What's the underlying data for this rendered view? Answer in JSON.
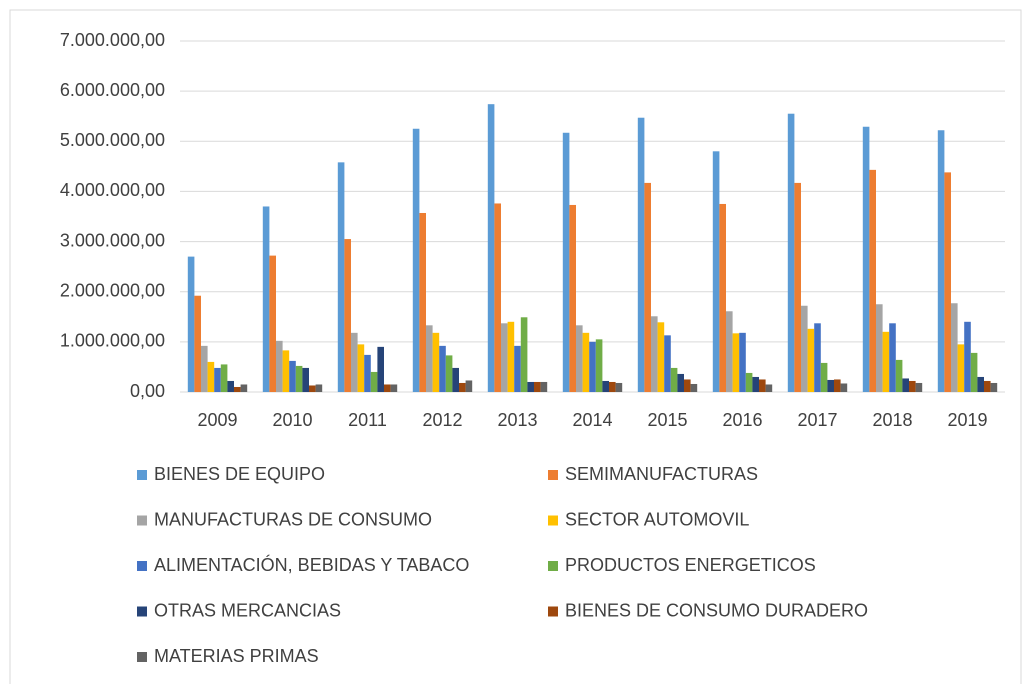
{
  "chart_data": {
    "type": "bar",
    "categories": [
      "2009",
      "2010",
      "2011",
      "2012",
      "2013",
      "2014",
      "2015",
      "2016",
      "2017",
      "2018",
      "2019"
    ],
    "series": [
      {
        "name": "BIENES DE EQUIPO",
        "color": "#5b9bd5",
        "values": [
          2700000,
          3700000,
          4580000,
          5250000,
          5740000,
          5170000,
          5470000,
          4800000,
          5550000,
          5290000,
          5220000
        ]
      },
      {
        "name": "SEMIMANUFACTURAS",
        "color": "#ed7d31",
        "values": [
          1920000,
          2720000,
          3050000,
          3570000,
          3760000,
          3730000,
          4170000,
          3750000,
          4170000,
          4430000,
          4380000
        ]
      },
      {
        "name": "MANUFACTURAS DE CONSUMO",
        "color": "#a5a5a5",
        "values": [
          920000,
          1020000,
          1180000,
          1330000,
          1370000,
          1330000,
          1510000,
          1610000,
          1720000,
          1750000,
          1770000
        ]
      },
      {
        "name": "SECTOR AUTOMOVIL",
        "color": "#ffc000",
        "values": [
          600000,
          830000,
          950000,
          1180000,
          1400000,
          1180000,
          1390000,
          1170000,
          1260000,
          1200000,
          950000
        ]
      },
      {
        "name": "ALIMENTACIÓN, BEBIDAS Y TABACO",
        "color": "#4472c4",
        "values": [
          480000,
          620000,
          740000,
          920000,
          920000,
          1000000,
          1130000,
          1180000,
          1370000,
          1370000,
          1400000
        ]
      },
      {
        "name": "PRODUCTOS ENERGETICOS",
        "color": "#70ad47",
        "values": [
          550000,
          520000,
          400000,
          730000,
          1490000,
          1050000,
          480000,
          380000,
          580000,
          640000,
          780000
        ]
      },
      {
        "name": "OTRAS MERCANCIAS",
        "color": "#264478",
        "values": [
          220000,
          480000,
          900000,
          480000,
          200000,
          220000,
          360000,
          300000,
          240000,
          270000,
          300000
        ]
      },
      {
        "name": "BIENES DE CONSUMO DURADERO",
        "color": "#9e480e",
        "values": [
          100000,
          130000,
          150000,
          180000,
          200000,
          200000,
          250000,
          250000,
          250000,
          220000,
          220000
        ]
      },
      {
        "name": "MATERIAS PRIMAS",
        "color": "#636363",
        "values": [
          150000,
          150000,
          150000,
          230000,
          200000,
          180000,
          160000,
          150000,
          170000,
          180000,
          180000
        ]
      }
    ],
    "ylim": [
      0,
      7000000
    ],
    "yticks": [
      {
        "value": 0,
        "label": "0,00"
      },
      {
        "value": 1000000,
        "label": "1.000.000,00"
      },
      {
        "value": 2000000,
        "label": "2.000.000,00"
      },
      {
        "value": 3000000,
        "label": "3.000.000,00"
      },
      {
        "value": 4000000,
        "label": "4.000.000,00"
      },
      {
        "value": 5000000,
        "label": "5.000.000,00"
      },
      {
        "value": 6000000,
        "label": "6.000.000,00"
      },
      {
        "value": 7000000,
        "label": "7.000.000,00"
      }
    ],
    "grid": true
  }
}
